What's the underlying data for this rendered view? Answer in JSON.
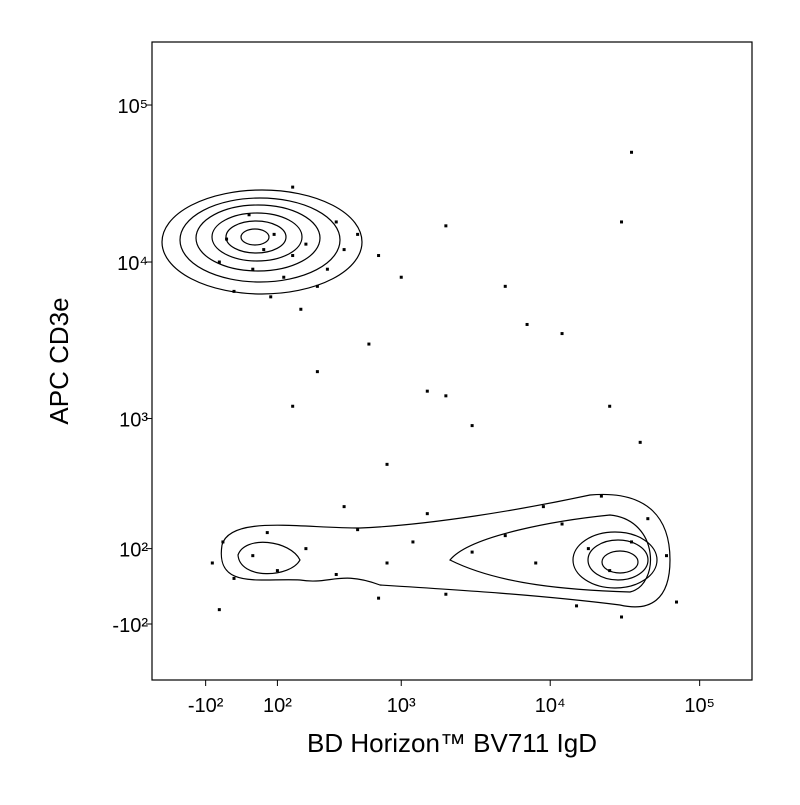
{
  "chart_data": {
    "type": "scatter",
    "x_label": "BD Horizon™ BV711 IgD",
    "y_label": "APC CD3e",
    "scale": "biexponential",
    "color": "#000000",
    "xlim": [
      -320,
      224000
    ],
    "ylim": [
      -318,
      252000
    ],
    "xticks": [
      {
        "value": -100,
        "label": "-10²"
      },
      {
        "value": 100,
        "label": "10²"
      },
      {
        "value": 1000,
        "label": "10³"
      },
      {
        "value": 10000,
        "label": "10⁴"
      },
      {
        "value": 100000,
        "label": "10⁵"
      }
    ],
    "yticks": [
      {
        "value": -100,
        "label": "-10²"
      },
      {
        "value": 100,
        "label": "10²"
      },
      {
        "value": 1000,
        "label": "10³"
      },
      {
        "value": 10000,
        "label": "10⁴"
      },
      {
        "value": 100000,
        "label": "10⁵"
      }
    ],
    "x": [
      30,
      60,
      90,
      120,
      150,
      200,
      250,
      -40,
      -60,
      20,
      300,
      400,
      80,
      180,
      500,
      700,
      1000,
      150,
      -20,
      350,
      1500,
      2000,
      3000,
      800,
      250,
      5000,
      25000,
      30000,
      40000,
      600,
      12000,
      150,
      2000,
      7000,
      35000,
      -80,
      -50,
      -20,
      30,
      70,
      100,
      200,
      350,
      500,
      800,
      1200,
      2000,
      3000,
      5000,
      8000,
      12000,
      18000,
      25000,
      35000,
      45000,
      60000,
      70000,
      22000,
      9000,
      400,
      -60,
      15000,
      30000,
      1500,
      700
    ],
    "y": [
      9000,
      12000,
      15000,
      8000,
      11000,
      13000,
      7000,
      14000,
      10000,
      20000,
      9000,
      12000,
      6000,
      5000,
      15000,
      11000,
      8000,
      30000,
      6500,
      18000,
      1500,
      1400,
      900,
      500,
      2000,
      7000,
      1200,
      18000,
      700,
      3000,
      3500,
      1200,
      17000,
      4000,
      50000,
      60,
      120,
      20,
      80,
      150,
      40,
      100,
      30,
      160,
      60,
      120,
      -20,
      90,
      140,
      60,
      180,
      100,
      40,
      120,
      200,
      80,
      -40,
      300,
      250,
      250,
      -60,
      -50,
      -80,
      220,
      -30
    ]
  }
}
